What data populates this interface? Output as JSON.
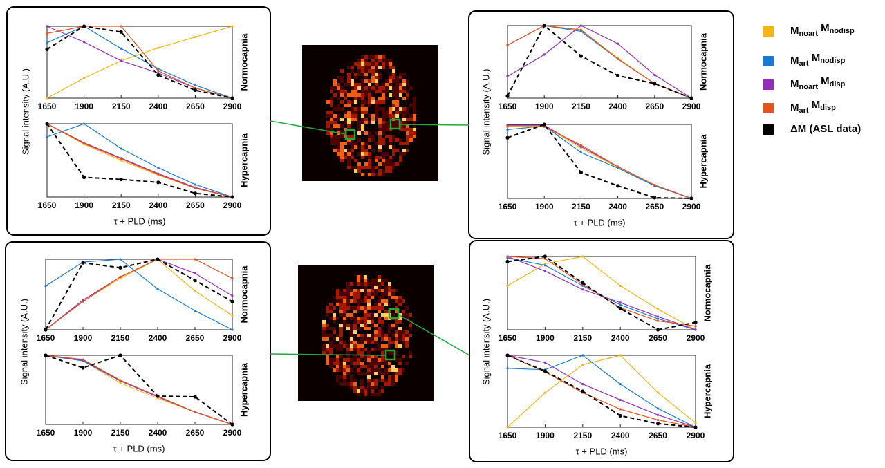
{
  "legend": [
    {
      "name": "Mnoart Mnodisp",
      "color": "#F5B417"
    },
    {
      "name": "Mart Mnodisp",
      "color": "#1A7BD1"
    },
    {
      "name": "Mnoart Mdisp",
      "color": "#9030B8"
    },
    {
      "name": "Mart Mdisp",
      "color": "#E35420"
    },
    {
      "name": "ΔM (ASL data)",
      "color": "#000000"
    }
  ],
  "chart_data": [
    {
      "type": "line",
      "title": "Normocapnia",
      "y_label": "Signal intensity (A.U.)",
      "x": [
        1650,
        1900,
        2150,
        2400,
        2650,
        2900
      ],
      "xlim": [
        1650,
        2900
      ],
      "xticks": [
        1650,
        1900,
        2150,
        2400,
        2650,
        2900
      ],
      "ylim": [
        0,
        1
      ],
      "series": [
        {
          "values": [
            0,
            0.28,
            0.52,
            0.7,
            0.85,
            1
          ]
        },
        {
          "values": [
            0.77,
            1,
            0.69,
            0.41,
            0.18,
            0
          ]
        },
        {
          "values": [
            1,
            0.78,
            0.52,
            0.35,
            0.14,
            0
          ]
        },
        {
          "values": [
            0.9,
            1,
            1,
            0.38,
            0.14,
            0
          ]
        },
        {
          "values": [
            0.68,
            1,
            0.92,
            0.32,
            0.11,
            0
          ]
        }
      ]
    },
    {
      "type": "line",
      "title": "Hypercapnia",
      "x_label": "τ + PLD (ms)",
      "x": [
        1650,
        1900,
        2150,
        2400,
        2650,
        2900
      ],
      "xlim": [
        1650,
        2900
      ],
      "xticks": [
        1650,
        1900,
        2150,
        2400,
        2650,
        2900
      ],
      "ylim": [
        0,
        1
      ],
      "series": [
        {
          "values": [
            1,
            0.72,
            0.5,
            0.3,
            0.12,
            0
          ]
        },
        {
          "values": [
            0.82,
            1,
            0.66,
            0.4,
            0.17,
            0
          ]
        },
        {
          "values": [
            1,
            0.74,
            0.53,
            0.32,
            0.13,
            0
          ]
        },
        {
          "values": [
            1,
            0.73,
            0.52,
            0.31,
            0.12,
            0
          ]
        },
        {
          "values": [
            1,
            0.27,
            0.24,
            0.2,
            0.05,
            0
          ]
        }
      ]
    },
    {
      "type": "line",
      "title": "Normocapnia",
      "y_label": "Signal intensity (A.U.)",
      "x": [
        1650,
        1900,
        2150,
        2400,
        2650,
        2900
      ],
      "xlim": [
        1650,
        2900
      ],
      "xticks": [
        1650,
        1900,
        2150,
        2400,
        2650,
        2900
      ],
      "ylim": [
        0,
        1
      ],
      "series": [
        {
          "values": [
            0.73,
            1,
            0.94,
            0.55,
            0.2,
            0
          ]
        },
        {
          "values": [
            0.73,
            1,
            0.92,
            0.54,
            0.2,
            0
          ]
        },
        {
          "values": [
            0.3,
            0.6,
            1,
            0.75,
            0.32,
            0
          ]
        },
        {
          "values": [
            0.73,
            1,
            0.94,
            0.54,
            0.2,
            0
          ]
        },
        {
          "values": [
            0.03,
            1,
            0.58,
            0.31,
            0.2,
            0
          ]
        }
      ]
    },
    {
      "type": "line",
      "title": "Hypercapnia",
      "x_label": "τ + PLD (ms)",
      "x": [
        1650,
        1900,
        2150,
        2400,
        2650,
        2900
      ],
      "xlim": [
        1650,
        2900
      ],
      "xticks": [
        1650,
        1900,
        2150,
        2400,
        2650,
        2900
      ],
      "ylim": [
        0,
        1
      ],
      "series": [
        {
          "values": [
            0.98,
            0.98,
            0.68,
            0.42,
            0.18,
            0
          ]
        },
        {
          "values": [
            0.93,
            0.98,
            0.62,
            0.41,
            0.17,
            0
          ]
        },
        {
          "values": [
            0.99,
            0.99,
            0.7,
            0.43,
            0.18,
            0
          ]
        },
        {
          "values": [
            0.97,
            0.97,
            0.72,
            0.43,
            0.18,
            0
          ]
        },
        {
          "values": [
            0.82,
            1,
            0.35,
            0.17,
            0.01,
            0
          ]
        }
      ]
    },
    {
      "type": "line",
      "title": "Normocapnia",
      "y_label": "Signal intensity (A.U.)",
      "x": [
        1650,
        1900,
        2150,
        2400,
        2650,
        2900
      ],
      "xlim": [
        1650,
        2900
      ],
      "xticks": [
        1650,
        1900,
        2150,
        2400,
        2650,
        2900
      ],
      "ylim": [
        0,
        1
      ],
      "series": [
        {
          "values": [
            0,
            0.4,
            0.73,
            1,
            0.55,
            0.2
          ]
        },
        {
          "values": [
            0.62,
            0.96,
            1,
            0.58,
            0.27,
            0
          ]
        },
        {
          "values": [
            0,
            0.42,
            0.75,
            1,
            0.8,
            0.48
          ]
        },
        {
          "values": [
            0,
            0.4,
            0.75,
            1,
            1,
            0.73
          ]
        },
        {
          "values": [
            0,
            0.95,
            0.88,
            1,
            0.7,
            0.4
          ]
        }
      ]
    },
    {
      "type": "line",
      "title": "Hypercapnia",
      "x_label": "τ + PLD (ms)",
      "x": [
        1650,
        1900,
        2150,
        2400,
        2650,
        2900
      ],
      "xlim": [
        1650,
        2900
      ],
      "xticks": [
        1650,
        1900,
        2150,
        2400,
        2650,
        2900
      ],
      "ylim": [
        0,
        1
      ],
      "series": [
        {
          "values": [
            1,
            0.92,
            0.6,
            0.38,
            0.18,
            0
          ]
        },
        {
          "values": [
            1,
            0.92,
            0.63,
            0.4,
            0.18,
            0
          ]
        },
        {
          "values": [
            1,
            0.93,
            0.63,
            0.4,
            0.18,
            0
          ]
        },
        {
          "values": [
            1,
            0.94,
            0.64,
            0.41,
            0.18,
            0
          ]
        },
        {
          "values": [
            1,
            0.82,
            1,
            0.41,
            0.4,
            0
          ]
        }
      ]
    },
    {
      "type": "line",
      "title": "Normocapnia",
      "y_label": "Signal intensity (A.U.)",
      "x": [
        1650,
        1900,
        2150,
        2400,
        2650,
        2900
      ],
      "xlim": [
        1650,
        2900
      ],
      "xticks": [
        1650,
        1900,
        2150,
        2400,
        2650,
        2900
      ],
      "ylim": [
        0,
        1
      ],
      "series": [
        {
          "values": [
            0.6,
            0.9,
            1,
            0.6,
            0.28,
            0
          ]
        },
        {
          "values": [
            0.98,
            0.88,
            0.6,
            0.34,
            0.15,
            0
          ]
        },
        {
          "values": [
            1,
            0.8,
            0.55,
            0.37,
            0.18,
            0
          ]
        },
        {
          "values": [
            1,
            0.97,
            0.62,
            0.3,
            0.12,
            0.05
          ]
        },
        {
          "values": [
            0.93,
            1,
            0.64,
            0.29,
            0,
            0.1
          ]
        }
      ]
    },
    {
      "type": "line",
      "title": "Hypercapnia",
      "x_label": "τ + PLD (ms)",
      "x": [
        1650,
        1900,
        2150,
        2400,
        2650,
        2900
      ],
      "xlim": [
        1650,
        2900
      ],
      "xticks": [
        1650,
        1900,
        2150,
        2400,
        2650,
        2900
      ],
      "ylim": [
        0,
        1
      ],
      "series": [
        {
          "values": [
            0,
            0.48,
            0.87,
            1,
            0.48,
            0.06
          ]
        },
        {
          "values": [
            0.82,
            0.8,
            1,
            0.6,
            0.26,
            0
          ]
        },
        {
          "values": [
            1,
            0.9,
            0.6,
            0.38,
            0.17,
            0
          ]
        },
        {
          "values": [
            1,
            0.77,
            0.48,
            0.25,
            0.1,
            0
          ]
        },
        {
          "values": [
            1,
            0.78,
            0.5,
            0.16,
            0.05,
            0
          ]
        }
      ]
    }
  ]
}
